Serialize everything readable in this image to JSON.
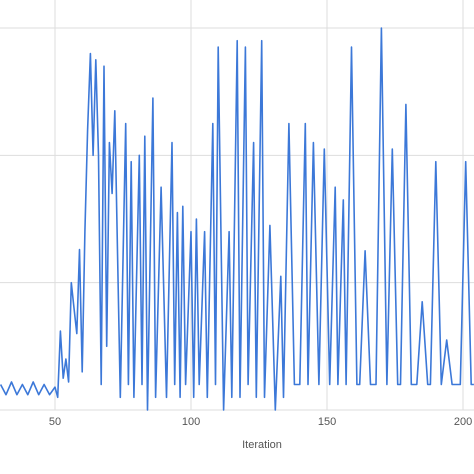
{
  "chart_data": {
    "type": "line",
    "x_label": "Iteration",
    "x": [
      30,
      32,
      34,
      36,
      38,
      40,
      42,
      44,
      46,
      48,
      50,
      51,
      52,
      53,
      54,
      55,
      56,
      57,
      58,
      59,
      60,
      61,
      62,
      63,
      64,
      65,
      66,
      67,
      68,
      69,
      70,
      71,
      72,
      74,
      76,
      77,
      78,
      79,
      81,
      82,
      83,
      84,
      86,
      87,
      89,
      91,
      93,
      94,
      95,
      96,
      97,
      98,
      100,
      101,
      102,
      103,
      105,
      106,
      108,
      109,
      110,
      112,
      114,
      115,
      117,
      118,
      120,
      121,
      123,
      124,
      126,
      127,
      129,
      131,
      133,
      134,
      136,
      138,
      140,
      142,
      143,
      145,
      147,
      149,
      151,
      153,
      154,
      156,
      157,
      159,
      161,
      162,
      164,
      166,
      168,
      170,
      172,
      174,
      176,
      177,
      179,
      181,
      183,
      185,
      187,
      188,
      190,
      192,
      194,
      196,
      199,
      201,
      203,
      204
    ],
    "series": [
      {
        "color": "#3c78d8",
        "values": [
          0.2,
          0.12,
          0.22,
          0.12,
          0.2,
          0.12,
          0.22,
          0.12,
          0.2,
          0.12,
          0.18,
          0.1,
          0.62,
          0.25,
          0.4,
          0.22,
          1.0,
          0.8,
          0.6,
          1.26,
          0.3,
          1.4,
          2.2,
          2.8,
          2.0,
          2.75,
          2.0,
          0.2,
          2.7,
          0.5,
          2.1,
          1.7,
          2.35,
          0.1,
          2.25,
          0.2,
          1.95,
          0.1,
          2.0,
          0.2,
          2.15,
          0,
          2.45,
          0.1,
          1.75,
          0.1,
          2.1,
          0.2,
          1.55,
          0.1,
          1.6,
          0.2,
          1.4,
          0.1,
          1.5,
          0.2,
          1.4,
          0.1,
          2.25,
          0.2,
          2.85,
          0,
          1.4,
          0.1,
          2.9,
          0.1,
          2.85,
          0.2,
          2.1,
          0.1,
          2.9,
          0.1,
          1.45,
          0,
          1.05,
          0.1,
          2.25,
          0.2,
          0.2,
          2.25,
          0.2,
          2.1,
          0.2,
          2.05,
          0.2,
          1.75,
          0.2,
          1.65,
          0.2,
          2.85,
          0.2,
          0.2,
          1.25,
          0.2,
          0.2,
          3.0,
          0.2,
          2.05,
          0.2,
          0.2,
          2.4,
          0.2,
          0.2,
          0.85,
          0.2,
          0.2,
          1.95,
          0.2,
          0.55,
          0.2,
          0.2,
          1.95,
          0.2,
          0.2
        ]
      }
    ],
    "xlim": [
      30,
      204
    ],
    "xticks": [
      50,
      100,
      150,
      200
    ],
    "ylim": [
      0,
      3
    ],
    "yticks": [
      0,
      1,
      2,
      3
    ],
    "grid": true
  }
}
